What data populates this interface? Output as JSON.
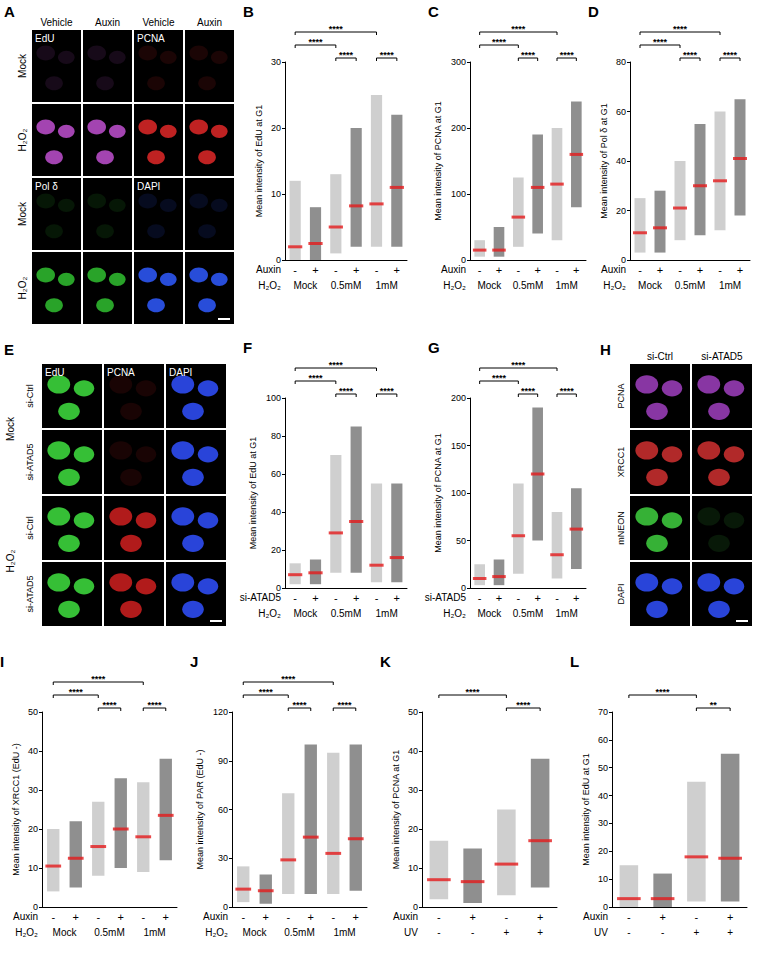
{
  "chart_data": [
    {
      "letter": "B",
      "type": "strip",
      "y_label": "Mean intensity of EdU at G1",
      "categories": [
        "-",
        "+",
        "-",
        "+",
        "-",
        "+"
      ],
      "x_label": "Auxin",
      "x_groups": {
        "name": "H₂O₂",
        "labels": [
          "Mock",
          "0.5mM",
          "1mM"
        ]
      },
      "values": [
        2,
        2.5,
        5,
        8.2,
        8.5,
        11
      ],
      "ranges": [
        [
          0,
          12
        ],
        [
          0,
          8
        ],
        [
          1,
          13
        ],
        [
          2,
          20
        ],
        [
          2,
          25
        ],
        [
          2,
          22
        ]
      ],
      "colors": [
        "#a8a8a8",
        "#333333",
        "#a8a8a8",
        "#333333",
        "#a8a8a8",
        "#333333"
      ],
      "ylim": [
        0,
        30
      ],
      "yticks": [
        0,
        10,
        20,
        30
      ],
      "significance": [
        {
          "from": 0,
          "to": 4,
          "label": "****"
        },
        {
          "from": 0,
          "to": 2,
          "label": "****"
        },
        {
          "from": 2,
          "to": 3,
          "label": "****"
        },
        {
          "from": 4,
          "to": 5,
          "label": "****"
        }
      ]
    },
    {
      "letter": "C",
      "type": "strip",
      "y_label": "Mean intensity of PCNA at G1",
      "categories": [
        "-",
        "+",
        "-",
        "+",
        "-",
        "+"
      ],
      "x_label": "Auxin",
      "x_groups": {
        "name": "H₂O₂",
        "labels": [
          "Mock",
          "0.5mM",
          "1mM"
        ]
      },
      "values": [
        15,
        15,
        65,
        110,
        115,
        160
      ],
      "ranges": [
        [
          5,
          30
        ],
        [
          5,
          50
        ],
        [
          20,
          125
        ],
        [
          40,
          190
        ],
        [
          30,
          200
        ],
        [
          80,
          240
        ]
      ],
      "colors": [
        "#a8a8a8",
        "#333333",
        "#a8a8a8",
        "#333333",
        "#a8a8a8",
        "#333333"
      ],
      "ylim": [
        0,
        300
      ],
      "yticks": [
        0,
        100,
        200,
        300
      ],
      "significance": [
        {
          "from": 0,
          "to": 4,
          "label": "****"
        },
        {
          "from": 0,
          "to": 2,
          "label": "****"
        },
        {
          "from": 2,
          "to": 3,
          "label": "****"
        },
        {
          "from": 4,
          "to": 5,
          "label": "****"
        }
      ]
    },
    {
      "letter": "D",
      "type": "strip",
      "y_label": "Mean intensity of Pol δ at G1",
      "categories": [
        "-",
        "+",
        "-",
        "+",
        "-",
        "+"
      ],
      "x_label": "Auxin",
      "x_groups": {
        "name": "H₂O₂",
        "labels": [
          "Mock",
          "0.5mM",
          "1mM"
        ]
      },
      "values": [
        11,
        13,
        21,
        30,
        32,
        41
      ],
      "ranges": [
        [
          3,
          25
        ],
        [
          3,
          28
        ],
        [
          8,
          40
        ],
        [
          10,
          55
        ],
        [
          12,
          60
        ],
        [
          18,
          65
        ]
      ],
      "colors": [
        "#a8a8a8",
        "#333333",
        "#a8a8a8",
        "#333333",
        "#a8a8a8",
        "#333333"
      ],
      "ylim": [
        0,
        80
      ],
      "yticks": [
        0,
        20,
        40,
        60,
        80
      ],
      "significance": [
        {
          "from": 0,
          "to": 4,
          "label": "****"
        },
        {
          "from": 0,
          "to": 2,
          "label": "****"
        },
        {
          "from": 2,
          "to": 3,
          "label": "****"
        },
        {
          "from": 4,
          "to": 5,
          "label": "****"
        }
      ]
    },
    {
      "letter": "F",
      "type": "strip",
      "y_label": "Mean intensity of EdU at G1",
      "categories": [
        "-",
        "+",
        "-",
        "+",
        "-",
        "+"
      ],
      "x_label": "si-ATAD5",
      "x_groups": {
        "name": "H₂O₂",
        "labels": [
          "Mock",
          "0.5mM",
          "1mM"
        ]
      },
      "values": [
        7,
        8,
        29,
        35,
        12,
        16
      ],
      "ranges": [
        [
          2,
          13
        ],
        [
          2,
          15
        ],
        [
          8,
          70
        ],
        [
          8,
          85
        ],
        [
          3,
          55
        ],
        [
          3,
          55
        ]
      ],
      "colors": [
        "#a8a8a8",
        "#333333",
        "#a8a8a8",
        "#333333",
        "#a8a8a8",
        "#333333"
      ],
      "ylim": [
        0,
        100
      ],
      "yticks": [
        0,
        20,
        40,
        60,
        80,
        100
      ],
      "significance": [
        {
          "from": 0,
          "to": 4,
          "label": "****"
        },
        {
          "from": 0,
          "to": 2,
          "label": "****"
        },
        {
          "from": 2,
          "to": 3,
          "label": "****"
        },
        {
          "from": 4,
          "to": 5,
          "label": "****"
        }
      ]
    },
    {
      "letter": "G",
      "type": "strip",
      "y_label": "Mean intensity of PCNA at G1",
      "categories": [
        "-",
        "+",
        "-",
        "+",
        "-",
        "+"
      ],
      "x_label": "si-ATAD5",
      "x_groups": {
        "name": "H₂O₂",
        "labels": [
          "Mock",
          "0.5mM",
          "1mM"
        ]
      },
      "values": [
        10,
        12,
        55,
        120,
        35,
        62
      ],
      "ranges": [
        [
          3,
          25
        ],
        [
          3,
          30
        ],
        [
          15,
          110
        ],
        [
          50,
          190
        ],
        [
          10,
          80
        ],
        [
          20,
          105
        ]
      ],
      "colors": [
        "#a8a8a8",
        "#333333",
        "#a8a8a8",
        "#333333",
        "#a8a8a8",
        "#333333"
      ],
      "ylim": [
        0,
        200
      ],
      "yticks": [
        0,
        50,
        100,
        150,
        200
      ],
      "significance": [
        {
          "from": 0,
          "to": 4,
          "label": "****"
        },
        {
          "from": 0,
          "to": 2,
          "label": "****"
        },
        {
          "from": 2,
          "to": 3,
          "label": "****"
        },
        {
          "from": 4,
          "to": 5,
          "label": "****"
        }
      ]
    },
    {
      "letter": "I",
      "type": "strip",
      "y_label": "Mean intensity of XRCC1 (EdU -)",
      "categories": [
        "-",
        "+",
        "-",
        "+",
        "-",
        "+"
      ],
      "x_label": "Auxin",
      "x_groups": {
        "name": "H₂O₂",
        "labels": [
          "Mock",
          "0.5mM",
          "1mM"
        ]
      },
      "values": [
        10.5,
        12.5,
        15.5,
        20,
        18,
        23.5
      ],
      "ranges": [
        [
          4,
          20
        ],
        [
          5,
          22
        ],
        [
          8,
          27
        ],
        [
          10,
          33
        ],
        [
          9,
          32
        ],
        [
          12,
          38
        ]
      ],
      "colors": [
        "#a8a8a8",
        "#333333",
        "#a8a8a8",
        "#333333",
        "#a8a8a8",
        "#333333"
      ],
      "ylim": [
        0,
        50
      ],
      "yticks": [
        0,
        10,
        20,
        30,
        40,
        50
      ],
      "significance": [
        {
          "from": 0,
          "to": 4,
          "label": "****"
        },
        {
          "from": 0,
          "to": 2,
          "label": "****"
        },
        {
          "from": 2,
          "to": 3,
          "label": "****"
        },
        {
          "from": 4,
          "to": 5,
          "label": "****"
        }
      ]
    },
    {
      "letter": "J",
      "type": "strip",
      "y_label": "Mean intensity of PAR (EdU -)",
      "categories": [
        "-",
        "+",
        "-",
        "+",
        "-",
        "+"
      ],
      "x_label": "Auxin",
      "x_groups": {
        "name": "H₂O₂",
        "labels": [
          "Mock",
          "0.5mM",
          "1mM"
        ]
      },
      "values": [
        11,
        10,
        29,
        43,
        33,
        42
      ],
      "ranges": [
        [
          3,
          25
        ],
        [
          2,
          20
        ],
        [
          8,
          70
        ],
        [
          8,
          100
        ],
        [
          8,
          95
        ],
        [
          10,
          100
        ]
      ],
      "colors": [
        "#a8a8a8",
        "#333333",
        "#a8a8a8",
        "#333333",
        "#a8a8a8",
        "#333333"
      ],
      "ylim": [
        0,
        120
      ],
      "yticks": [
        0,
        30,
        60,
        90,
        120
      ],
      "significance": [
        {
          "from": 0,
          "to": 4,
          "label": "****"
        },
        {
          "from": 0,
          "to": 2,
          "label": "****"
        },
        {
          "from": 2,
          "to": 3,
          "label": "****"
        },
        {
          "from": 4,
          "to": 5,
          "label": "****"
        }
      ]
    },
    {
      "letter": "K",
      "type": "strip",
      "y_label": "Mean intensity of PCNA at G1",
      "categories": [
        "-",
        "+",
        "-",
        "+"
      ],
      "x_label": "Auxin",
      "x_groups": {
        "name": "UV",
        "labels": [
          "-",
          "-",
          "+",
          "+"
        ]
      },
      "values": [
        7,
        6.5,
        11,
        17
      ],
      "ranges": [
        [
          2,
          17
        ],
        [
          1,
          15
        ],
        [
          3,
          25
        ],
        [
          5,
          38
        ]
      ],
      "colors": [
        "#a8a8a8",
        "#333333",
        "#a8a8a8",
        "#333333"
      ],
      "ylim": [
        0,
        50
      ],
      "yticks": [
        0,
        10,
        20,
        30,
        40,
        50
      ],
      "significance": [
        {
          "from": 0,
          "to": 2,
          "label": "****"
        },
        {
          "from": 2,
          "to": 3,
          "label": "****"
        }
      ]
    },
    {
      "letter": "L",
      "type": "strip",
      "y_label": "Mean intensity of EdU at G1",
      "categories": [
        "-",
        "+",
        "-",
        "+"
      ],
      "x_label": "Auxin",
      "x_groups": {
        "name": "UV",
        "labels": [
          "-",
          "-",
          "+",
          "+"
        ]
      },
      "values": [
        3,
        3,
        18,
        17.5
      ],
      "ranges": [
        [
          0,
          15
        ],
        [
          0,
          12
        ],
        [
          2,
          45
        ],
        [
          2,
          55
        ]
      ],
      "colors": [
        "#a8a8a8",
        "#333333",
        "#a8a8a8",
        "#333333"
      ],
      "ylim": [
        0,
        70
      ],
      "yticks": [
        0,
        10,
        20,
        30,
        40,
        50,
        60,
        70
      ],
      "significance": [
        {
          "from": 0,
          "to": 2,
          "label": "****"
        },
        {
          "from": 2,
          "to": 3,
          "label": "**"
        }
      ]
    }
  ],
  "images": [
    {
      "letter": "A",
      "columns": [
        "Vehicle",
        "Auxin",
        "Vehicle",
        "Auxin"
      ],
      "rows": [
        "Mock",
        "H₂O₂",
        "Mock",
        "H₂O₂"
      ],
      "channels": [
        {
          "name": "EdU",
          "color": "#c050d0"
        },
        {
          "name": "PCNA",
          "color": "#e02828"
        },
        {
          "name": "Pol δ",
          "color": "#30c030"
        },
        {
          "name": "DAPI",
          "color": "#2f5bff"
        }
      ]
    },
    {
      "letter": "E",
      "conditions": [
        "Mock",
        "H₂O₂"
      ],
      "rows": [
        "si-Ctrl",
        "si-ATAD5"
      ],
      "channels": [
        {
          "name": "EdU",
          "color": "#40e040"
        },
        {
          "name": "PCNA",
          "color": "#d02020"
        },
        {
          "name": "DAPI",
          "color": "#3050ff"
        }
      ]
    },
    {
      "letter": "H",
      "columns": [
        "si-Ctrl",
        "si-ATAD5"
      ],
      "channels": [
        {
          "name": "PCNA",
          "color": "#a040c0"
        },
        {
          "name": "XRCC1",
          "color": "#d03030"
        },
        {
          "name": "mNEON",
          "color": "#40d040"
        },
        {
          "name": "DAPI",
          "color": "#3050ff"
        }
      ]
    }
  ]
}
